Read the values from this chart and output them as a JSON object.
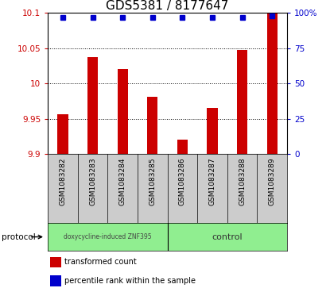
{
  "title": "GDS5381 / 8177647",
  "categories": [
    "GSM1083282",
    "GSM1083283",
    "GSM1083284",
    "GSM1083285",
    "GSM1083286",
    "GSM1083287",
    "GSM1083288",
    "GSM1083289"
  ],
  "red_values": [
    9.956,
    10.037,
    10.021,
    9.981,
    9.921,
    9.966,
    10.048,
    10.1
  ],
  "blue_values": [
    97,
    97,
    97,
    97,
    97,
    97,
    97,
    98
  ],
  "ylim_left": [
    9.9,
    10.1
  ],
  "ylim_right": [
    0,
    100
  ],
  "yticks_left": [
    9.9,
    9.95,
    10.0,
    10.05,
    10.1
  ],
  "yticks_right": [
    0,
    25,
    50,
    75,
    100
  ],
  "ytick_labels_left": [
    "9.9",
    "9.95",
    "10",
    "10.05",
    "10.1"
  ],
  "ytick_labels_right": [
    "0",
    "25",
    "50",
    "75",
    "100%"
  ],
  "bar_color": "#cc0000",
  "dot_color": "#0000cc",
  "group1_label": "doxycycline-induced ZNF395",
  "group2_label": "control",
  "group1_count": 4,
  "group2_count": 4,
  "protocol_label": "protocol",
  "legend_red": "transformed count",
  "legend_blue": "percentile rank within the sample",
  "plot_bg": "#ffffff",
  "tick_area_bg": "#cccccc",
  "group_bg": "#90ee90",
  "title_fontsize": 11,
  "tick_fontsize": 7.5,
  "label_fontsize": 7.5,
  "bar_width": 0.35
}
